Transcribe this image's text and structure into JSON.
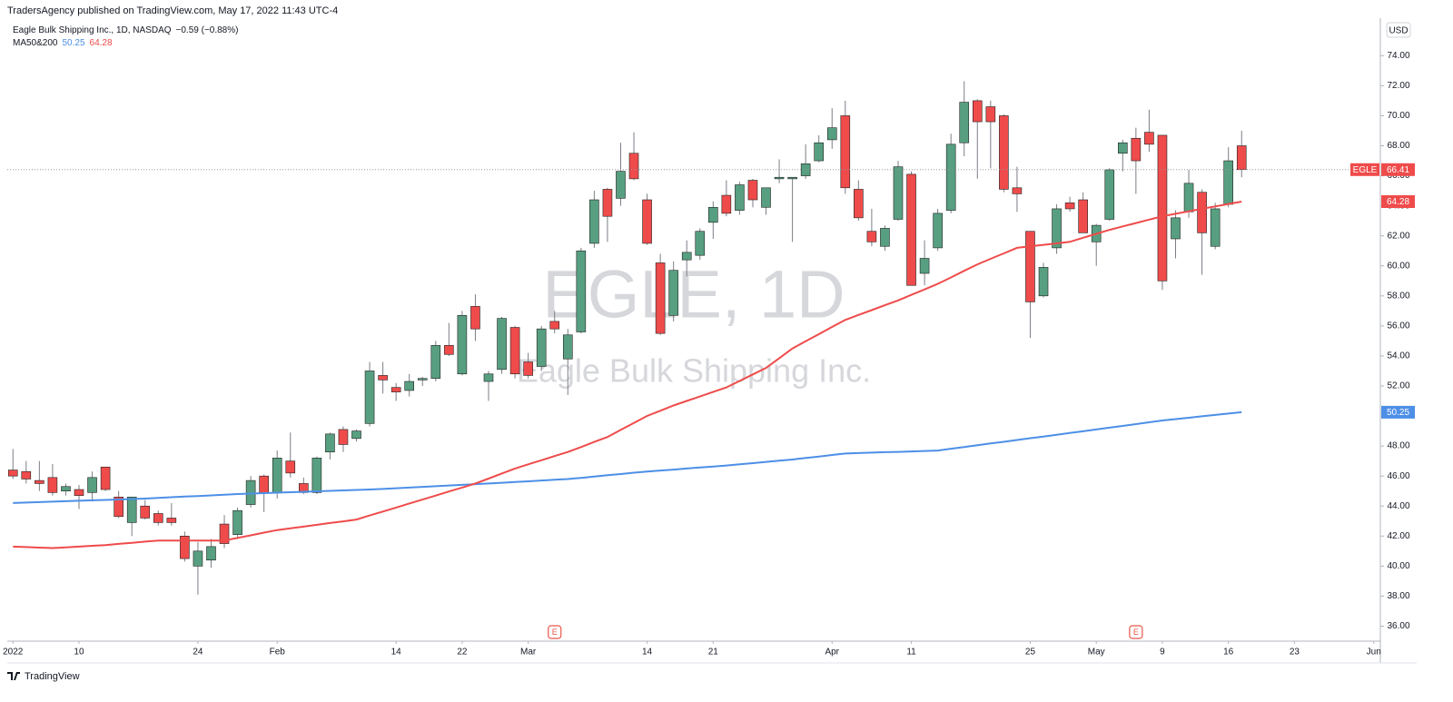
{
  "chart_data": {
    "type": "candlestick",
    "header": "TradersAgency published on TradingView.com, May 17, 2022 11:43 UTC-4",
    "title": "Eagle Bulk Shipping Inc., 1D, NASDAQ",
    "change": "−0.59 (−0.88%)",
    "watermark": "EGLE, 1D",
    "watermark_sub": "Eagle Bulk Shipping Inc.",
    "symbol": "EGLE",
    "currency": "USD",
    "footer": "TradingView",
    "up_color": "#579f80",
    "down_color": "#ef4b4b",
    "open": [
      46.4,
      46.3,
      45.7,
      45.9,
      45.0,
      45.1,
      44.9,
      46.6,
      44.6,
      42.9,
      44.0,
      43.5,
      43.2,
      42.0,
      40.0,
      40.4,
      42.8,
      42.1,
      44.1,
      46.0,
      44.9,
      47.0,
      45.5,
      44.9,
      47.6,
      49.1,
      48.5,
      49.5,
      52.7,
      51.9,
      51.7,
      52.4,
      52.5,
      54.7,
      52.8,
      57.3,
      52.3,
      53.1,
      55.9,
      53.6,
      53.3,
      56.3,
      53.8,
      55.6,
      61.5,
      65.1,
      64.5,
      67.5,
      64.4,
      60.2,
      56.7,
      60.4,
      60.7,
      62.9,
      64.7,
      63.7,
      65.7,
      63.9,
      65.8,
      65.8,
      66.0,
      67.0,
      68.4,
      70.0,
      65.1,
      62.3,
      61.3,
      63.1,
      66.1,
      59.5,
      61.2,
      63.7,
      68.2,
      71.0,
      70.6,
      70.0,
      65.2,
      62.3,
      58.0,
      61.2,
      64.2,
      64.4,
      61.6,
      63.1,
      67.5,
      68.5,
      68.9,
      68.7,
      61.8,
      63.6,
      64.9,
      61.3,
      64.1,
      68.0
    ],
    "high": [
      47.8,
      47.0,
      47.0,
      46.8,
      45.5,
      45.4,
      46.3,
      46.6,
      45.0,
      44.6,
      44.4,
      43.7,
      44.2,
      42.3,
      41.6,
      41.8,
      43.4,
      43.9,
      46.0,
      46.1,
      47.7,
      48.9,
      45.9,
      47.3,
      48.9,
      49.3,
      49.1,
      53.6,
      53.6,
      52.2,
      52.8,
      52.6,
      55.0,
      56.2,
      57.0,
      58.1,
      53.0,
      56.6,
      56.0,
      54.2,
      56.0,
      57.0,
      55.8,
      61.2,
      65.0,
      65.2,
      68.2,
      68.9,
      64.8,
      60.8,
      60.3,
      61.7,
      62.5,
      64.3,
      65.7,
      65.6,
      65.8,
      65.2,
      67.1,
      65.9,
      68.1,
      68.7,
      70.5,
      71.0,
      65.7,
      63.8,
      62.7,
      67.0,
      66.3,
      61.7,
      63.8,
      68.8,
      72.3,
      71.1,
      71.0,
      70.1,
      66.6,
      62.3,
      60.2,
      64.1,
      64.6,
      64.9,
      62.8,
      66.5,
      68.4,
      69.2,
      70.4,
      68.7,
      63.7,
      66.4,
      65.1,
      64.2,
      67.9,
      69.0
    ],
    "low": [
      45.8,
      45.5,
      45.0,
      44.7,
      44.7,
      43.8,
      44.3,
      45.0,
      43.2,
      42.0,
      43.1,
      42.7,
      42.7,
      40.3,
      38.1,
      39.9,
      41.2,
      41.8,
      43.9,
      43.6,
      44.5,
      45.9,
      44.8,
      44.8,
      47.1,
      47.6,
      48.3,
      49.3,
      51.5,
      51.0,
      51.3,
      52.0,
      52.3,
      54.0,
      52.7,
      55.0,
      51.0,
      52.8,
      52.5,
      52.5,
      53.0,
      55.5,
      51.4,
      55.5,
      61.2,
      61.6,
      64.0,
      65.7,
      61.4,
      55.4,
      56.3,
      59.3,
      60.4,
      61.8,
      63.3,
      63.4,
      63.9,
      63.4,
      65.5,
      61.6,
      65.8,
      66.9,
      67.8,
      64.8,
      63.0,
      61.3,
      61.0,
      63.0,
      58.7,
      58.7,
      61.0,
      63.5,
      67.3,
      65.8,
      66.5,
      64.9,
      63.6,
      55.2,
      57.9,
      60.8,
      63.6,
      62.2,
      60.0,
      63.0,
      66.3,
      64.8,
      67.6,
      58.4,
      60.5,
      63.2,
      59.4,
      61.1,
      63.9,
      65.9
    ],
    "close": [
      46.0,
      45.8,
      45.5,
      44.9,
      45.3,
      44.7,
      45.9,
      45.1,
      43.3,
      44.6,
      43.2,
      42.9,
      42.9,
      40.5,
      41.0,
      41.3,
      41.5,
      43.7,
      45.7,
      44.9,
      47.2,
      46.2,
      44.9,
      47.2,
      48.8,
      48.1,
      49.0,
      53.0,
      52.4,
      51.6,
      52.3,
      52.5,
      54.7,
      54.1,
      56.7,
      55.8,
      52.8,
      56.5,
      52.8,
      52.7,
      55.8,
      55.8,
      55.4,
      61.0,
      64.4,
      63.3,
      66.3,
      65.8,
      61.5,
      55.5,
      59.7,
      60.9,
      62.3,
      63.9,
      63.5,
      65.4,
      64.4,
      65.2,
      65.9,
      65.9,
      66.8,
      68.2,
      69.2,
      65.2,
      63.2,
      61.6,
      62.5,
      66.6,
      58.7,
      60.5,
      63.5,
      68.1,
      70.9,
      69.6,
      69.6,
      65.1,
      64.8,
      57.6,
      59.9,
      63.8,
      63.8,
      62.2,
      62.7,
      66.4,
      68.2,
      67.0,
      68.1,
      59.0,
      63.2,
      65.5,
      62.2,
      63.8,
      67.0,
      66.41
    ],
    "indicator": {
      "label": "MA50&200",
      "series": [
        {
          "color": "#4d8fe6",
          "values": [
            44.2,
            44.23,
            44.26,
            44.29,
            44.32,
            44.35,
            44.38,
            44.41,
            44.44,
            44.47,
            44.5,
            44.54,
            44.59,
            44.63,
            44.67,
            44.71,
            44.76,
            44.8,
            44.83,
            44.86,
            44.89,
            44.92,
            44.95,
            44.98,
            45.01,
            45.04,
            45.07,
            45.1,
            45.14,
            45.19,
            45.23,
            45.28,
            45.32,
            45.37,
            45.41,
            45.46,
            45.5,
            45.55,
            45.6,
            45.65,
            45.7,
            45.75,
            45.8,
            45.88,
            45.97,
            46.05,
            46.13,
            46.22,
            46.3,
            46.37,
            46.43,
            46.5,
            46.57,
            46.63,
            46.7,
            46.78,
            46.86,
            46.94,
            47.02,
            47.1,
            47.2,
            47.3,
            47.4,
            47.5,
            47.53,
            47.56,
            47.59,
            47.61,
            47.64,
            47.67,
            47.7,
            47.82,
            47.93,
            48.05,
            48.17,
            48.28,
            48.4,
            48.52,
            48.63,
            48.75,
            48.87,
            48.98,
            49.1,
            49.22,
            49.34,
            49.46,
            49.58,
            49.7,
            49.79,
            49.88,
            49.98,
            50.07,
            50.16,
            50.25
          ]
        },
        {
          "color": "#ef4b4b",
          "values": [
            41.3,
            41.27,
            41.23,
            41.2,
            41.25,
            41.3,
            41.35,
            41.4,
            41.48,
            41.55,
            41.63,
            41.7,
            41.7,
            41.7,
            41.7,
            41.7,
            41.7,
            41.88,
            42.05,
            42.23,
            42.4,
            42.52,
            42.63,
            42.75,
            42.87,
            42.98,
            43.1,
            43.37,
            43.63,
            43.9,
            44.17,
            44.43,
            44.7,
            44.97,
            45.23,
            45.5,
            45.83,
            46.17,
            46.5,
            46.78,
            47.05,
            47.33,
            47.6,
            47.93,
            48.27,
            48.6,
            49.07,
            49.53,
            50.0,
            50.35,
            50.7,
            51.0,
            51.3,
            51.6,
            51.9,
            52.33,
            52.77,
            53.2,
            53.85,
            54.5,
            54.98,
            55.45,
            55.93,
            56.4,
            56.73,
            57.05,
            57.38,
            57.7,
            58.07,
            58.43,
            58.8,
            59.23,
            59.67,
            60.1,
            60.47,
            60.83,
            61.2,
            61.3,
            61.4,
            61.5,
            61.6,
            61.87,
            62.13,
            62.4,
            62.63,
            62.85,
            63.08,
            63.3,
            63.47,
            63.63,
            63.8,
            63.96,
            64.12,
            64.28
          ]
        }
      ]
    },
    "earnings": [
      {
        "x": 41,
        "label": "E"
      },
      {
        "x": 85,
        "label": "E"
      }
    ],
    "ylim": [
      35,
      76.5
    ],
    "yticks": [
      {
        "value": 36,
        "label": "36.00"
      },
      {
        "value": 38,
        "label": "38.00"
      },
      {
        "value": 40,
        "label": "40.00"
      },
      {
        "value": 42,
        "label": "42.00"
      },
      {
        "value": 44,
        "label": "44.00"
      },
      {
        "value": 46,
        "label": "46.00"
      },
      {
        "value": 48,
        "label": "48.00"
      },
      {
        "value": 50,
        "label": "50.00"
      },
      {
        "value": 52,
        "label": "52.00"
      },
      {
        "value": 54,
        "label": "54.00"
      },
      {
        "value": 56,
        "label": "56.00"
      },
      {
        "value": 58,
        "label": "58.00"
      },
      {
        "value": 60,
        "label": "60.00"
      },
      {
        "value": 62,
        "label": "62.00"
      },
      {
        "value": 64,
        "label": "64.00"
      },
      {
        "value": 66,
        "label": "66.00"
      },
      {
        "value": 68,
        "label": "68.00"
      },
      {
        "value": 70,
        "label": "70.00"
      },
      {
        "value": 72,
        "label": "72.00"
      },
      {
        "value": 74,
        "label": "74.00"
      }
    ],
    "xlim": [
      -0.43,
      103.5
    ],
    "xticks": [
      {
        "value": 0,
        "label": "2022"
      },
      {
        "value": 5,
        "label": "10"
      },
      {
        "value": 14,
        "label": "24"
      },
      {
        "value": 20,
        "label": "Feb"
      },
      {
        "value": 29,
        "label": "14"
      },
      {
        "value": 34,
        "label": "22"
      },
      {
        "value": 39,
        "label": "Mar"
      },
      {
        "value": 48,
        "label": "14"
      },
      {
        "value": 53,
        "label": "21"
      },
      {
        "value": 62,
        "label": "Apr"
      },
      {
        "value": 68,
        "label": "11"
      },
      {
        "value": 77,
        "label": "25"
      },
      {
        "value": 82,
        "label": "May"
      },
      {
        "value": 87,
        "label": "9"
      },
      {
        "value": 92,
        "label": "16"
      },
      {
        "value": 97,
        "label": "23"
      },
      {
        "value": 103,
        "label": "Jun"
      }
    ]
  }
}
